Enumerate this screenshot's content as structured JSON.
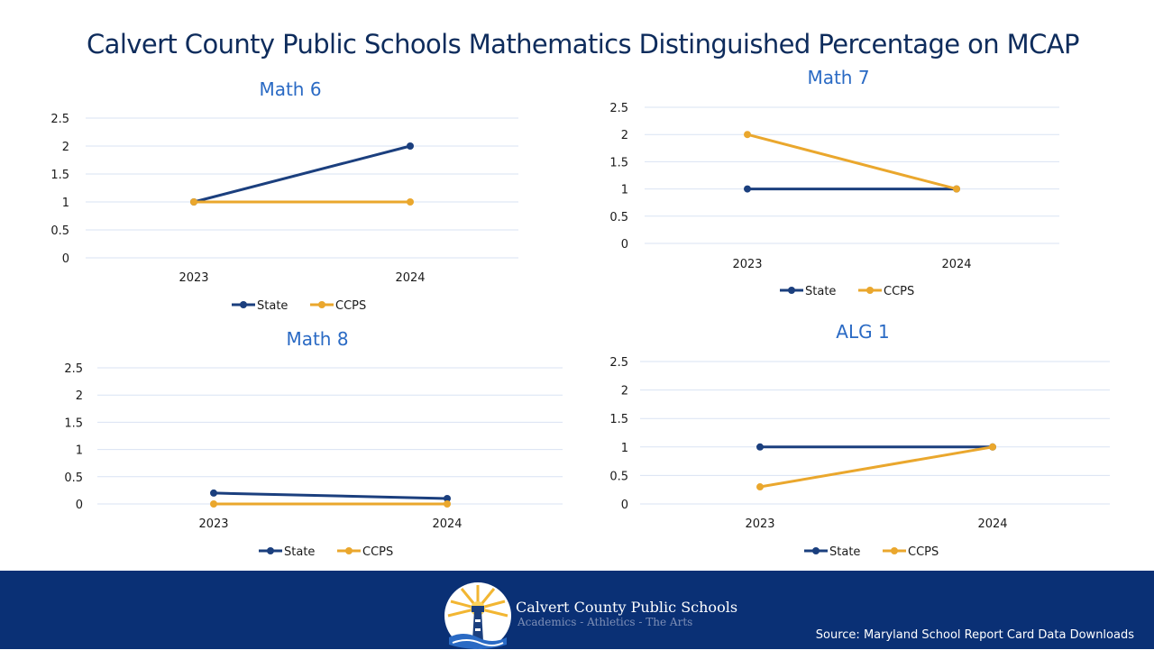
{
  "slide_title": "Calvert County Public Schools Mathematics Distinguished Percentage on MCAP",
  "footer": {
    "org_name": "Calvert County Public Schools",
    "tagline": "Academics - Athletics - The Arts",
    "source": "Source: Maryland School Report Card Data Downloads"
  },
  "colors": {
    "state": "#1b3f7e",
    "ccps": "#eaa72d",
    "grid": "#d9e3f3",
    "title": "#2a6ac4",
    "footer": "#0a3075"
  },
  "chart_data": [
    {
      "type": "line",
      "title": "Math 6",
      "categories": [
        "2023",
        "2024"
      ],
      "series": [
        {
          "name": "State",
          "values": [
            1,
            2
          ]
        },
        {
          "name": "CCPS",
          "values": [
            1,
            1
          ]
        }
      ],
      "ylim": [
        0,
        2.5
      ],
      "yticks": [
        "0",
        "0.5",
        "1",
        "1.5",
        "2",
        "2.5"
      ],
      "grid": true,
      "legend": "bottom"
    },
    {
      "type": "line",
      "title": "Math 7",
      "categories": [
        "2023",
        "2024"
      ],
      "series": [
        {
          "name": "State",
          "values": [
            1,
            1
          ]
        },
        {
          "name": "CCPS",
          "values": [
            2,
            1
          ]
        }
      ],
      "ylim": [
        0,
        2.5
      ],
      "yticks": [
        "0",
        "0.5",
        "1",
        "1.5",
        "2",
        "2.5"
      ],
      "grid": true,
      "legend": "bottom"
    },
    {
      "type": "line",
      "title": "Math 8",
      "categories": [
        "2023",
        "2024"
      ],
      "series": [
        {
          "name": "State",
          "values": [
            0.2,
            0.1
          ]
        },
        {
          "name": "CCPS",
          "values": [
            0,
            0
          ]
        }
      ],
      "ylim": [
        0,
        2.5
      ],
      "yticks": [
        "0",
        "0.5",
        "1",
        "1.5",
        "2",
        "2.5"
      ],
      "grid": true,
      "legend": "bottom"
    },
    {
      "type": "line",
      "title": "ALG 1",
      "categories": [
        "2023",
        "2024"
      ],
      "series": [
        {
          "name": "State",
          "values": [
            1,
            1
          ]
        },
        {
          "name": "CCPS",
          "values": [
            0.3,
            1
          ]
        }
      ],
      "ylim": [
        0,
        2.5
      ],
      "yticks": [
        "0",
        "0.5",
        "1",
        "1.5",
        "2",
        "2.5"
      ],
      "grid": true,
      "legend": "bottom"
    }
  ]
}
